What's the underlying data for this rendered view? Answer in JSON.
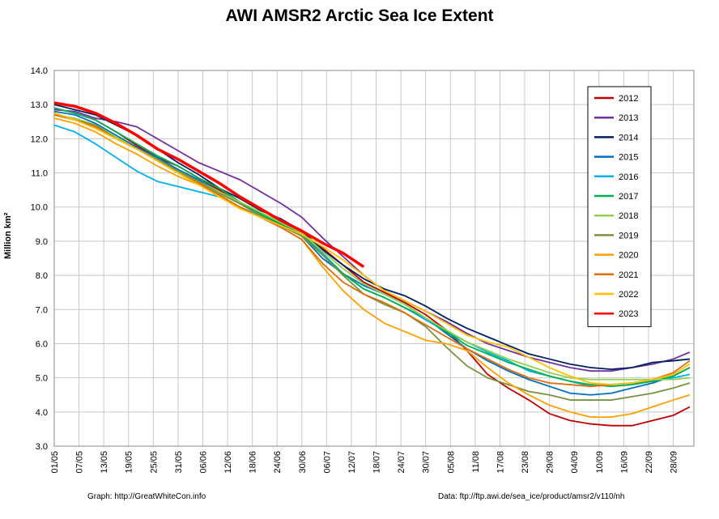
{
  "chart_data": {
    "type": "line",
    "title": "AWI AMSR2 Arctic Sea Ice Extent",
    "ylabel": "Million km²",
    "xlabel": "",
    "ylim": [
      3.0,
      14.0
    ],
    "yticks": [
      "3.0",
      "4.0",
      "5.0",
      "6.0",
      "7.0",
      "8.0",
      "9.0",
      "10.0",
      "11.0",
      "12.0",
      "13.0",
      "14.0"
    ],
    "xlim": [
      "01/05",
      "03/10"
    ],
    "xticks": [
      "01/05",
      "07/05",
      "13/05",
      "19/05",
      "25/05",
      "31/05",
      "06/06",
      "12/06",
      "18/06",
      "24/06",
      "30/06",
      "06/07",
      "12/07",
      "18/07",
      "24/07",
      "30/07",
      "05/08",
      "11/08",
      "17/08",
      "23/08",
      "29/08",
      "04/09",
      "10/09",
      "16/09",
      "22/09",
      "28/09"
    ],
    "grid": true,
    "legend_position": "top-right",
    "x_dates": [
      "01/05",
      "06/05",
      "11/05",
      "16/05",
      "21/05",
      "26/05",
      "31/05",
      "05/06",
      "10/06",
      "15/06",
      "20/06",
      "25/06",
      "30/06",
      "05/07",
      "10/07",
      "15/07",
      "20/07",
      "25/07",
      "30/07",
      "04/08",
      "09/08",
      "14/08",
      "19/08",
      "24/08",
      "29/08",
      "03/09",
      "08/09",
      "13/09",
      "18/09",
      "23/09",
      "28/09",
      "02/10"
    ],
    "series": [
      {
        "name": "2012",
        "color": "#c00000",
        "values": [
          12.9,
          12.75,
          12.55,
          12.2,
          11.8,
          11.45,
          11.2,
          10.85,
          10.5,
          10.1,
          9.75,
          9.45,
          9.15,
          8.8,
          8.3,
          7.8,
          7.5,
          7.2,
          6.85,
          6.4,
          5.8,
          5.1,
          4.7,
          4.35,
          3.95,
          3.75,
          3.65,
          3.6,
          3.6,
          3.75,
          3.9,
          4.15
        ]
      },
      {
        "name": "2013",
        "color": "#7030a0",
        "values": [
          12.85,
          12.8,
          12.6,
          12.5,
          12.35,
          12.0,
          11.65,
          11.3,
          11.05,
          10.8,
          10.45,
          10.1,
          9.7,
          9.1,
          8.55,
          8.0,
          7.55,
          7.25,
          6.95,
          6.65,
          6.3,
          6.0,
          5.8,
          5.6,
          5.45,
          5.3,
          5.2,
          5.2,
          5.3,
          5.4,
          5.55,
          5.75
        ]
      },
      {
        "name": "2014",
        "color": "#002060",
        "values": [
          13.0,
          12.85,
          12.7,
          12.4,
          12.1,
          11.7,
          11.3,
          10.95,
          10.55,
          10.25,
          9.9,
          9.65,
          9.3,
          8.75,
          8.3,
          7.9,
          7.6,
          7.4,
          7.1,
          6.75,
          6.45,
          6.2,
          5.95,
          5.7,
          5.55,
          5.4,
          5.3,
          5.25,
          5.3,
          5.45,
          5.5,
          5.55
        ]
      },
      {
        "name": "2015",
        "color": "#0070c0",
        "values": [
          12.8,
          12.7,
          12.45,
          12.1,
          11.75,
          11.45,
          11.1,
          10.8,
          10.45,
          10.1,
          9.8,
          9.45,
          9.15,
          8.5,
          8.05,
          7.7,
          7.45,
          7.15,
          6.75,
          6.3,
          5.85,
          5.5,
          5.2,
          4.95,
          4.75,
          4.55,
          4.5,
          4.55,
          4.7,
          4.85,
          5.05,
          5.3
        ]
      },
      {
        "name": "2016",
        "color": "#00b0f0",
        "values": [
          12.4,
          12.2,
          11.85,
          11.45,
          11.05,
          10.75,
          10.6,
          10.45,
          10.3,
          10.0,
          9.75,
          9.45,
          9.2,
          8.65,
          8.05,
          7.6,
          7.35,
          7.05,
          6.7,
          6.35,
          6.05,
          5.75,
          5.5,
          5.2,
          5.05,
          4.9,
          4.75,
          4.8,
          4.85,
          4.9,
          5.0,
          5.1
        ]
      },
      {
        "name": "2017",
        "color": "#00b050",
        "values": [
          12.9,
          12.75,
          12.55,
          12.2,
          11.85,
          11.5,
          11.2,
          10.85,
          10.55,
          10.15,
          9.8,
          9.5,
          9.2,
          8.6,
          8.05,
          7.6,
          7.35,
          7.05,
          6.75,
          6.35,
          5.95,
          5.7,
          5.45,
          5.25,
          5.05,
          4.9,
          4.8,
          4.75,
          4.8,
          4.9,
          5.05,
          5.3
        ]
      },
      {
        "name": "2018",
        "color": "#92d050",
        "values": [
          12.7,
          12.6,
          12.4,
          12.05,
          11.7,
          11.35,
          11.05,
          10.75,
          10.45,
          10.15,
          9.85,
          9.55,
          9.25,
          8.7,
          8.2,
          7.75,
          7.45,
          7.15,
          6.75,
          6.4,
          6.05,
          5.8,
          5.55,
          5.35,
          5.15,
          5.0,
          4.95,
          4.95,
          4.95,
          4.95,
          4.95,
          5.0
        ]
      },
      {
        "name": "2019",
        "color": "#77933c",
        "values": [
          12.75,
          12.55,
          12.4,
          12.0,
          11.7,
          11.4,
          11.05,
          10.75,
          10.4,
          10.1,
          9.75,
          9.45,
          9.15,
          8.6,
          8.0,
          7.45,
          7.15,
          6.9,
          6.5,
          5.9,
          5.35,
          5.0,
          4.8,
          4.6,
          4.5,
          4.35,
          4.35,
          4.35,
          4.45,
          4.55,
          4.7,
          4.85
        ]
      },
      {
        "name": "2020",
        "color": "#ffa000",
        "values": [
          12.6,
          12.45,
          12.2,
          11.85,
          11.55,
          11.2,
          10.9,
          10.65,
          10.35,
          10.0,
          9.7,
          9.4,
          9.05,
          8.25,
          7.55,
          7.0,
          6.6,
          6.35,
          6.1,
          6.0,
          5.8,
          5.3,
          4.85,
          4.5,
          4.2,
          4.0,
          3.85,
          3.85,
          3.95,
          4.15,
          4.35,
          4.5
        ]
      },
      {
        "name": "2021",
        "color": "#e36c09",
        "values": [
          12.7,
          12.55,
          12.35,
          12.0,
          11.7,
          11.35,
          11.0,
          10.7,
          10.35,
          10.0,
          9.7,
          9.4,
          9.05,
          8.35,
          7.8,
          7.45,
          7.2,
          6.9,
          6.55,
          6.2,
          5.85,
          5.55,
          5.25,
          5.0,
          4.85,
          4.8,
          4.75,
          4.8,
          4.85,
          4.95,
          5.15,
          5.5
        ]
      },
      {
        "name": "2022",
        "color": "#ffc000",
        "values": [
          12.75,
          12.55,
          12.3,
          12.0,
          11.7,
          11.35,
          11.0,
          10.65,
          10.3,
          9.95,
          9.7,
          9.45,
          9.2,
          8.85,
          8.45,
          8.0,
          7.55,
          7.25,
          6.95,
          6.6,
          6.25,
          6.05,
          5.9,
          5.6,
          5.3,
          5.05,
          4.85,
          4.8,
          4.85,
          4.95,
          5.1,
          5.4
        ]
      },
      {
        "name": "2023",
        "color": "#ff0000",
        "values": [
          13.05,
          12.95,
          12.75,
          12.45,
          12.1,
          11.7,
          11.4,
          11.05,
          10.7,
          10.3,
          9.95,
          9.6,
          9.3,
          8.95,
          8.65,
          8.25
        ]
      }
    ],
    "series_2023_length_note": ""
  },
  "credits": {
    "left": "Graph: http://GreatWhiteCon.info",
    "right": "Data: ftp://ftp.awi.de/sea_ice/product/amsr2/v110/nh"
  }
}
